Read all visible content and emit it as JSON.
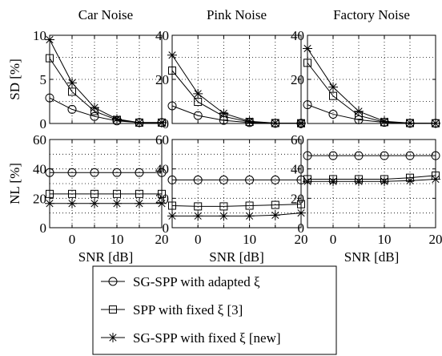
{
  "chart_data": {
    "type": "line",
    "columns": [
      "Car Noise",
      "Pink Noise",
      "Factory Noise"
    ],
    "x": [
      -5,
      0,
      5,
      10,
      15,
      20
    ],
    "xlabel": "SNR [dB]",
    "x_ticks": [
      0,
      10,
      20
    ],
    "xlim": [
      -5,
      20
    ],
    "grid": true,
    "legend_position": "bottom",
    "series_styles": [
      {
        "name": "SG-SPP with adapted ξ",
        "marker": "circle"
      },
      {
        "name": "SPP with fixed ξ [3]",
        "marker": "square"
      },
      {
        "name": "SG-SPP with fixed ξ [new]",
        "marker": "star"
      }
    ],
    "rows": [
      {
        "ylabel": "SD [%]",
        "panels": [
          {
            "ylim": [
              0,
              10
            ],
            "y_ticks": [
              0,
              5,
              10
            ],
            "y_ticklabels": [
              "0",
              "5",
              "10"
            ],
            "series": [
              {
                "name": "SG-SPP with adapted ξ",
                "values": [
                  2.9,
                  1.6,
                  0.8,
                  0.3,
                  0.1,
                  0.1
                ]
              },
              {
                "name": "SPP with fixed ξ [3]",
                "values": [
                  7.4,
                  3.6,
                  1.4,
                  0.4,
                  0.1,
                  0.1
                ]
              },
              {
                "name": "SG-SPP with fixed ξ [new]",
                "values": [
                  9.5,
                  4.6,
                  1.8,
                  0.5,
                  0.1,
                  0.1
                ]
              }
            ]
          },
          {
            "ylim": [
              0,
              40
            ],
            "y_ticks": [
              0,
              20,
              40
            ],
            "y_ticklabels": [
              "0",
              "20",
              "40"
            ],
            "series": [
              {
                "name": "SG-SPP with adapted ξ",
                "values": [
                  8.0,
                  3.6,
                  1.4,
                  0.4,
                  0.1,
                  0.1
                ]
              },
              {
                "name": "SPP with fixed ξ [3]",
                "values": [
                  24.0,
                  9.8,
                  3.2,
                  0.7,
                  0.2,
                  0.1
                ]
              },
              {
                "name": "SG-SPP with fixed ξ [new]",
                "values": [
                  31.0,
                  13.5,
                  4.6,
                  1.0,
                  0.2,
                  0.1
                ]
              }
            ]
          },
          {
            "ylim": [
              0,
              40
            ],
            "y_ticks": [
              0,
              20,
              40
            ],
            "y_ticklabels": [
              "0",
              "20",
              "40"
            ],
            "series": [
              {
                "name": "SG-SPP with adapted ξ",
                "values": [
                  8.5,
                  4.2,
                  1.7,
                  0.5,
                  0.1,
                  0.1
                ]
              },
              {
                "name": "SPP with fixed ξ [3]",
                "values": [
                  27.5,
                  12.5,
                  3.6,
                  0.6,
                  0.2,
                  0.1
                ]
              },
              {
                "name": "SG-SPP with fixed ξ [new]",
                "values": [
                  34.0,
                  16.5,
                  5.5,
                  1.0,
                  0.2,
                  0.1
                ]
              }
            ]
          }
        ]
      },
      {
        "ylabel": "NL [%]",
        "panels": [
          {
            "ylim": [
              0,
              60
            ],
            "y_ticks": [
              0,
              20,
              40,
              60
            ],
            "y_ticklabels": [
              "0",
              "20",
              "40",
              "60"
            ],
            "series": [
              {
                "name": "SG-SPP with adapted ξ",
                "values": [
                  37.5,
                  37.5,
                  37.5,
                  37.5,
                  37.5,
                  37.5
                ]
              },
              {
                "name": "SPP with fixed ξ [3]",
                "values": [
                  23.0,
                  23.0,
                  23.0,
                  23.0,
                  23.0,
                  23.0
                ]
              },
              {
                "name": "SG-SPP with fixed ξ [new]",
                "values": [
                  16.5,
                  16.5,
                  16.5,
                  16.5,
                  16.5,
                  16.5
                ]
              }
            ]
          },
          {
            "ylim": [
              0,
              60
            ],
            "y_ticks": [
              0,
              20,
              40,
              60
            ],
            "y_ticklabels": [
              "0",
              "20",
              "40",
              "60"
            ],
            "series": [
              {
                "name": "SG-SPP with adapted ξ",
                "values": [
                  32.5,
                  32.5,
                  32.5,
                  32.5,
                  32.5,
                  32.5
                ]
              },
              {
                "name": "SPP with fixed ξ [3]",
                "values": [
                  15.0,
                  14.5,
                  14.5,
                  15.0,
                  15.5,
                  16.0
                ]
              },
              {
                "name": "SG-SPP with fixed ξ [new]",
                "values": [
                  8.0,
                  8.0,
                  8.0,
                  8.0,
                  8.5,
                  10.0
                ]
              }
            ]
          },
          {
            "ylim": [
              0,
              60
            ],
            "y_ticks": [
              0,
              20,
              40,
              60
            ],
            "y_ticklabels": [
              "0",
              "20",
              "40",
              "60"
            ],
            "series": [
              {
                "name": "SG-SPP with adapted ξ",
                "values": [
                  49.0,
                  49.0,
                  49.0,
                  49.0,
                  49.0,
                  49.0
                ]
              },
              {
                "name": "SPP with fixed ξ [3]",
                "values": [
                  33.0,
                  33.0,
                  33.0,
                  33.0,
                  34.0,
                  35.5
                ]
              },
              {
                "name": "SG-SPP with fixed ξ [new]",
                "values": [
                  31.5,
                  31.5,
                  31.5,
                  31.5,
                  32.0,
                  33.0
                ]
              }
            ]
          }
        ]
      }
    ]
  }
}
